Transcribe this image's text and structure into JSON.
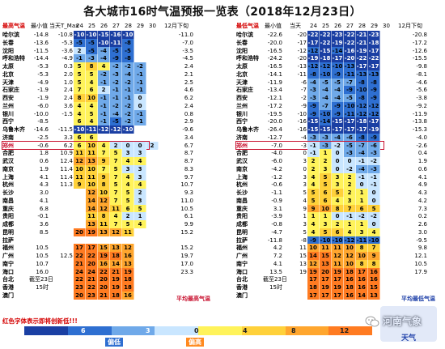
{
  "title": "各大城市16时气温预报一览表（2018年12月23日）",
  "left_header": [
    "最高气温",
    "最小值",
    "当天T_Max",
    "24",
    "25",
    "26",
    "27",
    "28",
    "29",
    "30",
    "12月下旬"
  ],
  "right_header": [
    "最低气温",
    "最小值",
    "当天",
    "24",
    "25",
    "26",
    "27",
    "28",
    "29",
    "30",
    "12月下旬"
  ],
  "left_rows": [
    [
      "哈尔滨",
      "-14.8",
      "-10.8",
      "-10",
      "-10",
      "-15",
      "-16",
      "-10",
      "",
      "",
      "-11.0"
    ],
    [
      "长春",
      "-13.6",
      "-5.3",
      "-5",
      "-5",
      "-10",
      "-11",
      "-8",
      "",
      "",
      "-7.0"
    ],
    [
      "沈阳",
      "-11.5",
      "-3.6",
      "2",
      "-5",
      "-4",
      "-5",
      "-5",
      "",
      "",
      "-3.5"
    ],
    [
      "呼和浩特",
      "-14.4",
      "-4.9",
      "-1",
      "-3",
      "-4",
      "-9",
      "-8",
      "",
      "",
      "-4.5"
    ],
    [
      "太原",
      "-5.3",
      "0.3",
      "5",
      "8",
      "4",
      "-2",
      "-2",
      "-2",
      "",
      "2.4"
    ],
    [
      "北京",
      "-5.3",
      "2.0",
      "5",
      "5",
      "-2",
      "-3",
      "-4",
      "-1",
      "",
      "2.1"
    ],
    [
      "天津",
      "-4.9",
      "1.0",
      "5",
      "4",
      "-1",
      "-2",
      "-2",
      "-1",
      "",
      "2.5"
    ],
    [
      "石家庄",
      "-1.9",
      "2.4",
      "7",
      "6",
      "2",
      "-1",
      "-1",
      "-1",
      "",
      "4.6"
    ],
    [
      "西安",
      "-1.9",
      "2.4",
      "8",
      "10",
      "-1",
      "-1",
      "-1",
      "0",
      "",
      "6.2"
    ],
    [
      "兰州",
      "-6.0",
      "3.6",
      "4",
      "4",
      "-1",
      "-2",
      "-2",
      "0",
      "",
      "2.4"
    ],
    [
      "银川",
      "-10.0",
      "-1.5",
      "4",
      "5",
      "-1",
      "-4",
      "-2",
      "-1",
      "",
      "0.8"
    ],
    [
      "西宁",
      "-8.5",
      "",
      "6",
      "4",
      "-1",
      "-5",
      "-2",
      "-1",
      "",
      "2.9"
    ],
    [
      "乌鲁木齐",
      "-14.6",
      "-11.5",
      "-10",
      "-11",
      "-12",
      "-12",
      "-10",
      "",
      "",
      "-9.6"
    ],
    [
      "济南",
      "-2.5",
      "3.3",
      "6",
      "6",
      "",
      "",
      "",
      "",
      "",
      "3.4"
    ],
    [
      "郑州",
      "-0.6",
      "6.2",
      "6",
      "10",
      "4",
      "2",
      "0",
      "0",
      "2",
      "6.7"
    ],
    [
      "合肥",
      "1.8",
      "10.9",
      "11",
      "11",
      "7",
      "5",
      "3",
      "3",
      "",
      "8.7"
    ],
    [
      "武汉",
      "0.6",
      "12.4",
      "12",
      "13",
      "9",
      "7",
      "4",
      "4",
      "",
      "8.7"
    ],
    [
      "南京",
      "1.9",
      "11.4",
      "10",
      "10",
      "7",
      "5",
      "3",
      "3",
      "",
      "8.3"
    ],
    [
      "上海",
      "4.1",
      "11.4",
      "11",
      "11",
      "9",
      "7",
      "4",
      "3",
      "",
      "9.7"
    ],
    [
      "杭州",
      "4.3",
      "11.3",
      "9",
      "10",
      "8",
      "5",
      "4",
      "4",
      "",
      "10.7"
    ],
    [
      "长沙",
      "3.0",
      "",
      "",
      "12",
      "10",
      "7",
      "5",
      "2",
      "",
      "9.3"
    ],
    [
      "南昌",
      "4.1",
      "",
      "",
      "14",
      "12",
      "7",
      "5",
      "3",
      "",
      "11.0"
    ],
    [
      "重庆",
      "6.8",
      "",
      "",
      "14",
      "12",
      "11",
      "6",
      "5",
      "",
      "10.5"
    ],
    [
      "贵阳",
      "-0.1",
      "",
      "",
      "11",
      "8",
      "4",
      "2",
      "1",
      "",
      "6.1"
    ],
    [
      "成都",
      "3.6",
      "",
      "",
      "13",
      "11",
      "7",
      "5",
      "4",
      "",
      "9.9"
    ],
    [
      "昆明",
      "8.5",
      "",
      "20",
      "19",
      "13",
      "12",
      "11",
      "",
      "",
      "15.2"
    ],
    [
      "拉萨",
      "",
      "",
      "",
      "",
      "",
      "",
      "",
      "",
      "",
      ""
    ],
    [
      "福州",
      "10.5",
      "",
      "17",
      "17",
      "15",
      "13",
      "12",
      "",
      "",
      "15.2"
    ],
    [
      "广州",
      "10.5",
      "12.5",
      "22",
      "22",
      "19",
      "18",
      "16",
      "",
      "",
      "19.7"
    ],
    [
      "南宁",
      "10.7",
      "",
      "21",
      "20",
      "16",
      "14",
      "13",
      "",
      "",
      "17.0"
    ],
    [
      "海口",
      "16.0",
      "",
      "24",
      "24",
      "22",
      "21",
      "19",
      "",
      "",
      "23.3"
    ],
    [
      "台北",
      "截至23日",
      "",
      "22",
      "21",
      "20",
      "19",
      "18",
      "",
      "",
      ""
    ],
    [
      "香港",
      "15时",
      "",
      "23",
      "22",
      "20",
      "19",
      "18",
      "",
      "",
      ""
    ],
    [
      "澳门",
      "",
      "",
      "20",
      "23",
      "21",
      "18",
      "16",
      "",
      "",
      ""
    ]
  ],
  "right_rows": [
    [
      "哈尔滨",
      "-22.6",
      "-20",
      "-22",
      "-22",
      "-23",
      "-22",
      "-21",
      "-23",
      "",
      "-20.8"
    ],
    [
      "长春",
      "-20.0",
      "-17",
      "-17",
      "-22",
      "-19",
      "-22",
      "-21",
      "-18",
      "",
      "-17.2"
    ],
    [
      "沈阳",
      "-16.5",
      "-12",
      "-12",
      "-15",
      "-14",
      "-16",
      "-19",
      "-17",
      "",
      "-12.6"
    ],
    [
      "呼和浩特",
      "-24.2",
      "-20",
      "-19",
      "-18",
      "-17",
      "-20",
      "-22",
      "-22",
      "",
      "-15.5"
    ],
    [
      "太原",
      "-16.5",
      "-13",
      "-12",
      "-12",
      "-10",
      "-13",
      "-17",
      "-17",
      "",
      "-9.8"
    ],
    [
      "北京",
      "-14.1",
      "-11",
      "-8",
      "-10",
      "-9",
      "-11",
      "-13",
      "-13",
      "",
      "-8.1"
    ],
    [
      "天津",
      "-11.9",
      "-6",
      "-4",
      "-5",
      "-5",
      "-7",
      "-8",
      "-8",
      "",
      "-4.6"
    ],
    [
      "石家庄",
      "-13.4",
      "-7",
      "-3",
      "-4",
      "-4",
      "-9",
      "-10",
      "-9",
      "",
      "-5.6"
    ],
    [
      "西安",
      "-12.1",
      "-2",
      "-3",
      "-4",
      "-4",
      "-5",
      "-8",
      "-9",
      "",
      "-3.8"
    ],
    [
      "兰州",
      "-17.2",
      "-9",
      "-9",
      "-7",
      "-9",
      "-10",
      "-12",
      "-12",
      "",
      "-9.2"
    ],
    [
      "银川",
      "-19.5",
      "-10",
      "-9",
      "-10",
      "-9",
      "-11",
      "-12",
      "-12",
      "",
      "-11.9"
    ],
    [
      "西宁",
      "-20.0",
      "-16",
      "-15",
      "-14",
      "-15",
      "-17",
      "-18",
      "-17",
      "",
      "-13.8"
    ],
    [
      "乌鲁木齐",
      "-26.4",
      "-16",
      "-15",
      "-15",
      "-17",
      "-17",
      "-17",
      "-19",
      "",
      "-15.3"
    ],
    [
      "济南",
      "-12.7",
      "-4",
      "-3",
      "-3",
      "-4",
      "-6",
      "-8",
      "-9",
      "",
      "-4.0"
    ],
    [
      "郑州",
      "-7.0",
      "-3",
      "-1",
      "-3",
      "-2",
      "-5",
      "-7",
      "-6",
      "",
      "-2.6"
    ],
    [
      "合肥",
      "-4.0",
      "0",
      "-1",
      "1",
      "0",
      "-3",
      "-4",
      "-3",
      "",
      "0.4"
    ],
    [
      "武汉",
      "-6.0",
      "3",
      "2",
      "2",
      "0",
      "0",
      "-1",
      "-2",
      "",
      "1.9"
    ],
    [
      "南京",
      "-4.2",
      "0",
      "2",
      "3",
      "0",
      "-2",
      "-4",
      "-3",
      "",
      "0.6"
    ],
    [
      "上海",
      "-1.2",
      "3",
      "4",
      "5",
      "3",
      "2",
      "-1",
      "-1",
      "",
      "4.1"
    ],
    [
      "杭州",
      "-0.6",
      "3",
      "4",
      "5",
      "3",
      "2",
      "0",
      "-1",
      "",
      "4.9"
    ],
    [
      "长沙",
      "-1.1",
      "5",
      "5",
      "6",
      "5",
      "2",
      "1",
      "0",
      "",
      "4.3"
    ],
    [
      "南昌",
      "-0.9",
      "4",
      "5",
      "6",
      "4",
      "3",
      "1",
      "0",
      "",
      "4.2"
    ],
    [
      "重庆",
      "3.1",
      "9",
      "9",
      "10",
      "8",
      "7",
      "6",
      "5",
      "",
      "7.3"
    ],
    [
      "贵阳",
      "-3.9",
      "1",
      "1",
      "1",
      "0",
      "-1",
      "-2",
      "-2",
      "",
      "0.2"
    ],
    [
      "成都",
      "-0.8",
      "3",
      "4",
      "3",
      "2",
      "1",
      "1",
      "0",
      "",
      "2.6"
    ],
    [
      "昆明",
      "-4.7",
      "5",
      "4",
      "5",
      "6",
      "4",
      "3",
      "4",
      "",
      "3.0"
    ],
    [
      "拉萨",
      "-11.8",
      "-8",
      "-9",
      "-10",
      "-10",
      "-12",
      "-11",
      "-10",
      "",
      "-9.5"
    ],
    [
      "福州",
      "4.2",
      "11",
      "10",
      "11",
      "11",
      "10",
      "8",
      "7",
      "",
      "9.8"
    ],
    [
      "广州",
      "7.2",
      "15",
      "14",
      "15",
      "12",
      "12",
      "10",
      "9",
      "",
      "12.1"
    ],
    [
      "南宁",
      "4.1",
      "13",
      "12",
      "13",
      "11",
      "10",
      "8",
      "8",
      "",
      "10.5"
    ],
    [
      "海口",
      "13.5",
      "19",
      "19",
      "20",
      "19",
      "18",
      "17",
      "16",
      "",
      "17.9"
    ],
    [
      "台北",
      "截至23日",
      "",
      "17",
      "17",
      "17",
      "16",
      "16",
      "16",
      "",
      ""
    ],
    [
      "香港",
      "15时",
      "",
      "18",
      "19",
      "19",
      "18",
      "16",
      "15",
      "",
      ""
    ],
    [
      "澳门",
      "",
      "",
      "17",
      "17",
      "17",
      "16",
      "14",
      "13",
      "",
      ""
    ]
  ],
  "left_caption": "平均最高气温",
  "right_caption": "平均最低气温",
  "footnote": "红色字体表示即将创新低!!!",
  "legend": {
    "ticks": [
      "6",
      "3",
      "0",
      "4",
      "8",
      "12"
    ],
    "low_label": "偏低",
    "high_label": "偏高",
    "colors": [
      "#1a3fa3",
      "#2e6fd1",
      "#6fa9e9",
      "#c9e6ff",
      "#fff35a",
      "#ffd13a",
      "#ffa62e",
      "#ff7b21"
    ]
  },
  "weather_icon_label": "天气",
  "watermark": "河南气象",
  "highlight_city": "郑州"
}
